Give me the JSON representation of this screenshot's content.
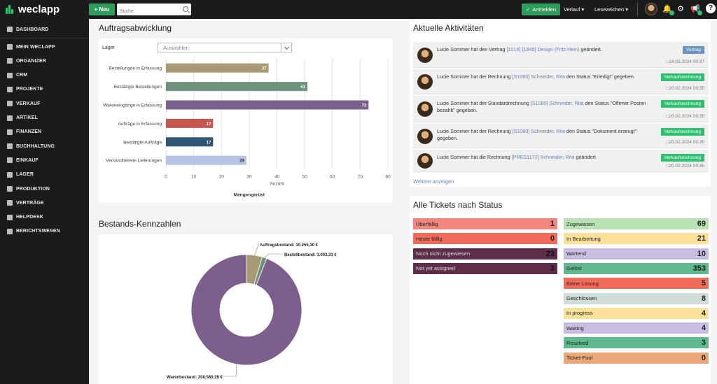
{
  "header": {
    "logo": "weclapp",
    "new_label": "+ Neu",
    "search_placeholder": "Suche",
    "login_label": "Anmelden",
    "history_label": "Verlauf",
    "bookmarks_label": "Lesezeichen",
    "help_label": "?"
  },
  "sidebar": {
    "items": [
      {
        "label": "DASHBOARD",
        "icon": "dashboard-icon"
      },
      {
        "label": "MEIN WECLAPP",
        "icon": "home-icon"
      },
      {
        "label": "ORGANIZER",
        "icon": "organizer-icon"
      },
      {
        "label": "CRM",
        "icon": "crm-icon"
      },
      {
        "label": "PROJEKTE",
        "icon": "projects-icon"
      },
      {
        "label": "VERKAUF",
        "icon": "sales-icon"
      },
      {
        "label": "ARTIKEL",
        "icon": "articles-icon"
      },
      {
        "label": "FINANZEN",
        "icon": "finance-icon"
      },
      {
        "label": "BUCHHALTUNG",
        "icon": "accounting-icon"
      },
      {
        "label": "EINKAUF",
        "icon": "purchase-icon"
      },
      {
        "label": "LAGER",
        "icon": "warehouse-icon"
      },
      {
        "label": "PRODUKTION",
        "icon": "production-icon"
      },
      {
        "label": "VERTRÄGE",
        "icon": "contracts-icon"
      },
      {
        "label": "HELPDESK",
        "icon": "helpdesk-icon"
      },
      {
        "label": "BERICHTSWESEN",
        "icon": "reports-icon"
      }
    ]
  },
  "orders": {
    "title": "Auftragsabwicklung",
    "lager_label": "Lager",
    "lager_placeholder": "Auswählen"
  },
  "stock": {
    "title": "Bestands-Kennzahlen"
  },
  "chart_data": [
    {
      "type": "bar",
      "orientation": "horizontal",
      "categories": [
        "Bestellungen in Erfassung",
        "Bestätigte Bestellungen",
        "Wareneingänge in Erfassung",
        "Aufträge in Erfassung",
        "Bestätigte Aufträge",
        "Versandbereite Lieferungen"
      ],
      "values": [
        37,
        51,
        73,
        17,
        17,
        29
      ],
      "colors": [
        "#a89a72",
        "#6f927f",
        "#7d5f8e",
        "#c8564d",
        "#2f5775",
        "#b6c2e6"
      ],
      "xlabel": "Anzahl",
      "caption": "Mengengerüst",
      "xlim": [
        0,
        80
      ],
      "xticks": [
        0,
        10,
        20,
        30,
        40,
        50,
        60,
        70,
        80
      ],
      "grid": true
    },
    {
      "type": "pie",
      "donut": true,
      "labels": [
        "Auftragsbestand: 10.255,30 €",
        "Bestellbestand: 3.003,33 €",
        "Warenbestand: 208.580,28 €"
      ],
      "values": [
        10255.3,
        3003.33,
        208580.28
      ],
      "colors": [
        "#a89a72",
        "#6f927f",
        "#7d5f8e"
      ]
    }
  ],
  "activities": {
    "title": "Aktuelle Aktivitäten",
    "more_label": "Weitere anzeigen",
    "items": [
      {
        "pre": "Lucie Sommer hat den Vertrag ",
        "link": "[1016] [1849] Design (Fritz Hein)",
        "post": " geändert.",
        "tag": "Vertrag",
        "tag_color": "#6a93c0",
        "time": "14.03.2024 09:37"
      },
      {
        "pre": "Lucie Sommer hat der Rechnung ",
        "link": "[S1080] Schneider, Rita",
        "post": " den Status \"Erledigt\" gegeben.",
        "tag": "Verkaufsrechnung",
        "tag_color": "#2fbf71",
        "time": "20.02.2024 09:35"
      },
      {
        "pre": "Lucie Sommer hat der Standardrechnung ",
        "link": "[S1080] Schneider, Rita",
        "post": " den Status \"Offener Posten bezahlt\" gegeben.",
        "tag": "Verkaufsrechnung",
        "tag_color": "#2fbf71",
        "time": "20.02.2024 09:35"
      },
      {
        "pre": "Lucie Sommer hat der Rechnung ",
        "link": "[S1080] Schneider, Rita",
        "post": " den Status \"Dokument erzeugt\" gegeben.",
        "tag": "Verkaufsrechnung",
        "tag_color": "#2fbf71",
        "time": "20.02.2024 09:35"
      },
      {
        "pre": "Lucie Sommer hat die Rechnung ",
        "link": "[PRES1172] Schneider, Rita",
        "post": " geändert.",
        "tag": "Verkaufsrechnung",
        "tag_color": "#2fbf71",
        "time": "20.02.2024 09:35"
      }
    ]
  },
  "tickets": {
    "title": "Alle Tickets nach Status",
    "left": [
      {
        "label": "Überfällig",
        "count": "1",
        "color": "#f3857f",
        "dark": false
      },
      {
        "label": "Heute fällig",
        "count": "0",
        "color": "#f26a5a",
        "dark": false
      },
      {
        "label": "Noch nicht zugewiesen",
        "count": "23",
        "color": "#5e2d4a",
        "dark": true
      },
      {
        "label": "Not yet assigned",
        "count": "3",
        "color": "#5e2d4a",
        "dark": true
      }
    ],
    "right": [
      {
        "label": "Zugewiesen",
        "count": "69",
        "color": "#b9e2b3"
      },
      {
        "label": "In Bearbeitung",
        "count": "21",
        "color": "#fbe19a"
      },
      {
        "label": "Wartend",
        "count": "10",
        "color": "#c9bde2"
      },
      {
        "label": "Gelöst",
        "count": "353",
        "color": "#5fb88e"
      },
      {
        "label": "Keine Lösung",
        "count": "5",
        "color": "#f26a5a"
      },
      {
        "label": "Geschlossen",
        "count": "8",
        "color": "#cfdcd8"
      },
      {
        "label": "In progress",
        "count": "4",
        "color": "#fbe19a"
      },
      {
        "label": "Waiting",
        "count": "4",
        "color": "#c9bde2"
      },
      {
        "label": "Resolved",
        "count": "3",
        "color": "#5fb88e"
      },
      {
        "label": "Ticket-Pool",
        "count": "0",
        "color": "#eaa878"
      }
    ]
  }
}
